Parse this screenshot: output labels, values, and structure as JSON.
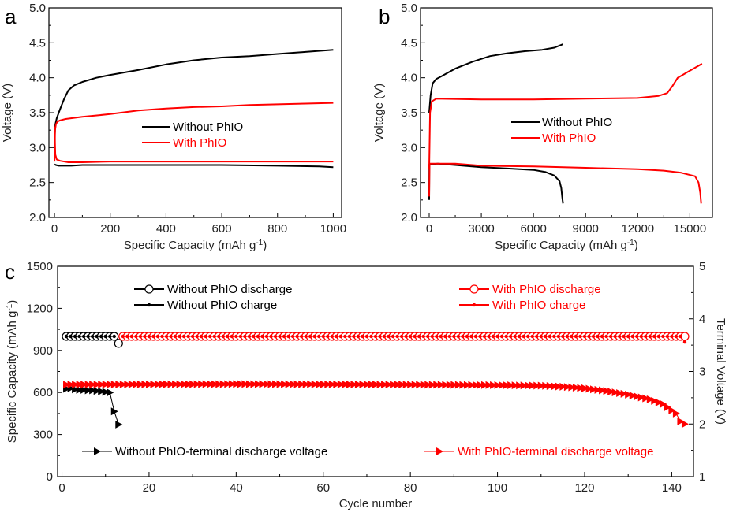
{
  "colors": {
    "without": "#000000",
    "with": "#ff0000",
    "axis": "#000000"
  },
  "chart_data": [
    {
      "panel": "a",
      "type": "line",
      "xlabel": "Specific Capacity (mAh g",
      "xlabel_sup": "-1",
      "xlabel_end": ")",
      "ylabel": "Voltage (V)",
      "xlim": [
        -20,
        1030
      ],
      "ylim": [
        2.0,
        5.0
      ],
      "xticks": [
        0,
        200,
        400,
        600,
        800,
        1000
      ],
      "xtick_labels": [
        "0",
        "200",
        "400",
        "600",
        "800",
        "1000"
      ],
      "yticks": [
        2.0,
        2.5,
        3.0,
        3.5,
        4.0,
        4.5,
        5.0
      ],
      "ytick_labels": [
        "2.0",
        "2.5",
        "3.0",
        "3.5",
        "4.0",
        "4.5",
        "5.0"
      ],
      "legend": {
        "placement": "center",
        "entries": [
          "Without PhIO",
          "With PhIO"
        ]
      },
      "series": [
        {
          "name": "Without PhIO discharge",
          "color_key": "without",
          "x": [
            0,
            5,
            15,
            30,
            60,
            100,
            200,
            400,
            600,
            800,
            950,
            1000
          ],
          "y": [
            2.76,
            2.75,
            2.74,
            2.74,
            2.74,
            2.75,
            2.75,
            2.75,
            2.75,
            2.74,
            2.73,
            2.72
          ]
        },
        {
          "name": "Without PhIO charge",
          "color_key": "without",
          "x": [
            0,
            3,
            8,
            20,
            35,
            50,
            70,
            100,
            150,
            200,
            300,
            400,
            500,
            600,
            700,
            800,
            900,
            1000
          ],
          "y": [
            3.1,
            3.33,
            3.42,
            3.55,
            3.7,
            3.82,
            3.89,
            3.94,
            4.0,
            4.04,
            4.11,
            4.19,
            4.25,
            4.29,
            4.31,
            4.34,
            4.37,
            4.4
          ]
        },
        {
          "name": "With PhIO discharge",
          "color_key": "with",
          "x": [
            0,
            3,
            8,
            20,
            50,
            100,
            200,
            400,
            600,
            800,
            1000
          ],
          "y": [
            3.3,
            2.9,
            2.83,
            2.81,
            2.79,
            2.79,
            2.8,
            2.8,
            2.8,
            2.8,
            2.8
          ]
        },
        {
          "name": "With PhIO charge",
          "color_key": "with",
          "x": [
            0,
            2,
            5,
            10,
            20,
            40,
            100,
            200,
            300,
            400,
            500,
            600,
            700,
            800,
            900,
            1000
          ],
          "y": [
            2.8,
            3.25,
            3.33,
            3.37,
            3.39,
            3.41,
            3.44,
            3.48,
            3.53,
            3.56,
            3.58,
            3.59,
            3.61,
            3.62,
            3.63,
            3.64
          ]
        }
      ]
    },
    {
      "panel": "b",
      "type": "line",
      "xlabel": "Specific Capacity (mAh g",
      "xlabel_sup": "-1",
      "xlabel_end": ")",
      "ylabel": "Voltage (V)",
      "xlim": [
        -500,
        16300
      ],
      "ylim": [
        2.0,
        5.0
      ],
      "xticks": [
        0,
        3000,
        6000,
        9000,
        12000,
        15000
      ],
      "xtick_labels": [
        "0",
        "3000",
        "6000",
        "9000",
        "12000",
        "15000"
      ],
      "yticks": [
        2.0,
        2.5,
        3.0,
        3.5,
        4.0,
        4.5,
        5.0
      ],
      "ytick_labels": [
        "2.0",
        "2.5",
        "3.0",
        "3.5",
        "4.0",
        "4.5",
        "5.0"
      ],
      "legend": {
        "placement": "center",
        "entries": [
          "Without PhIO",
          "With PhIO"
        ]
      },
      "series": [
        {
          "name": "Without PhIO discharge",
          "color_key": "without",
          "x": [
            0,
            10,
            500,
            1500,
            3000,
            4500,
            6000,
            6700,
            7200,
            7500,
            7600,
            7650,
            7700
          ],
          "y": [
            2.25,
            2.76,
            2.77,
            2.75,
            2.72,
            2.7,
            2.68,
            2.65,
            2.6,
            2.52,
            2.42,
            2.3,
            2.2
          ]
        },
        {
          "name": "Without PhIO charge",
          "color_key": "without",
          "x": [
            0,
            80,
            200,
            400,
            700,
            1500,
            2500,
            3500,
            4500,
            5500,
            6500,
            7200,
            7700
          ],
          "y": [
            3.5,
            3.75,
            3.92,
            3.98,
            4.02,
            4.13,
            4.23,
            4.31,
            4.35,
            4.38,
            4.4,
            4.43,
            4.48
          ]
        },
        {
          "name": "With PhIO discharge",
          "color_key": "with",
          "x": [
            0,
            20,
            1500,
            3000,
            6000,
            9000,
            12000,
            13500,
            14500,
            15300,
            15500,
            15600,
            15650
          ],
          "y": [
            2.3,
            2.77,
            2.77,
            2.74,
            2.73,
            2.71,
            2.69,
            2.67,
            2.64,
            2.59,
            2.5,
            2.35,
            2.2
          ]
        },
        {
          "name": "With PhIO charge",
          "color_key": "with",
          "x": [
            0,
            50,
            150,
            400,
            3000,
            6000,
            9000,
            12000,
            13200,
            13700,
            14000,
            14300,
            15000,
            15700
          ],
          "y": [
            2.7,
            3.5,
            3.66,
            3.7,
            3.69,
            3.69,
            3.7,
            3.71,
            3.74,
            3.78,
            3.88,
            4.0,
            4.1,
            4.2
          ]
        }
      ]
    },
    {
      "panel": "c",
      "type": "scatter",
      "xlabel": "Cycle number",
      "ylabel": "Specific Capacity (mAh g",
      "ylabel_sup": "-1",
      "ylabel_end": ")",
      "y2label": "Terminal Voltage (V)",
      "xlim": [
        -1,
        145
      ],
      "ylim": [
        0,
        1500
      ],
      "y2lim": [
        1,
        5
      ],
      "xticks": [
        0,
        20,
        40,
        60,
        80,
        100,
        120,
        140
      ],
      "xtick_labels": [
        "0",
        "20",
        "40",
        "60",
        "80",
        "100",
        "120",
        "140"
      ],
      "yticks": [
        0,
        300,
        600,
        900,
        1200,
        1500
      ],
      "ytick_labels": [
        "0",
        "300",
        "600",
        "900",
        "1200",
        "1500"
      ],
      "y2ticks": [
        1,
        2,
        3,
        4,
        5
      ],
      "y2tick_labels": [
        "1",
        "2",
        "3",
        "4",
        "5"
      ],
      "legend": {
        "entries_top_left": [
          "Without PhIO discharge",
          "Without PhIO charge"
        ],
        "entries_top_right": [
          "With PhIO discharge",
          "With PhIO charge"
        ],
        "entry_bottom_left": "Without PhIO-terminal discharge voltage",
        "entry_bottom_right": "With PhIO-terminal discharge voltage"
      },
      "series": [
        {
          "name": "Without PhIO discharge",
          "axis": "left",
          "marker": "open-circle",
          "color_key": "without",
          "x_range": [
            1,
            13
          ],
          "value": 1000,
          "last_value": 950
        },
        {
          "name": "Without PhIO charge",
          "axis": "left",
          "marker": "dot",
          "color_key": "without",
          "x_range": [
            1,
            12
          ],
          "value": 1000
        },
        {
          "name": "With PhIO discharge",
          "axis": "left",
          "marker": "open-circle",
          "color_key": "with",
          "x_range": [
            14,
            143
          ],
          "value": 1000
        },
        {
          "name": "With PhIO charge",
          "axis": "left",
          "marker": "dot",
          "color_key": "with",
          "x_range": [
            14,
            143
          ],
          "value": 1000,
          "last_value": 960
        },
        {
          "name": "Without PhIO-terminal discharge voltage",
          "axis": "right",
          "marker": "triangle-right",
          "color_key": "without",
          "x": [
            1,
            2,
            3,
            4,
            5,
            6,
            7,
            8,
            9,
            10,
            11,
            12,
            13
          ],
          "y": [
            2.67,
            2.68,
            2.66,
            2.65,
            2.65,
            2.64,
            2.64,
            2.63,
            2.62,
            2.61,
            2.6,
            2.24,
            1.99
          ]
        },
        {
          "name": "With PhIO-terminal discharge voltage",
          "axis": "right",
          "marker": "triangle-right",
          "color_key": "with",
          "x_range": [
            1,
            143
          ],
          "curve_points": [
            [
              1,
              2.75
            ],
            [
              40,
              2.76
            ],
            [
              80,
              2.75
            ],
            [
              100,
              2.74
            ],
            [
              110,
              2.73
            ],
            [
              115,
              2.71
            ],
            [
              120,
              2.68
            ],
            [
              125,
              2.63
            ],
            [
              130,
              2.56
            ],
            [
              135,
              2.47
            ],
            [
              138,
              2.38
            ],
            [
              141,
              2.2
            ],
            [
              142,
              2.05
            ],
            [
              143,
              2.0
            ]
          ]
        }
      ]
    }
  ]
}
